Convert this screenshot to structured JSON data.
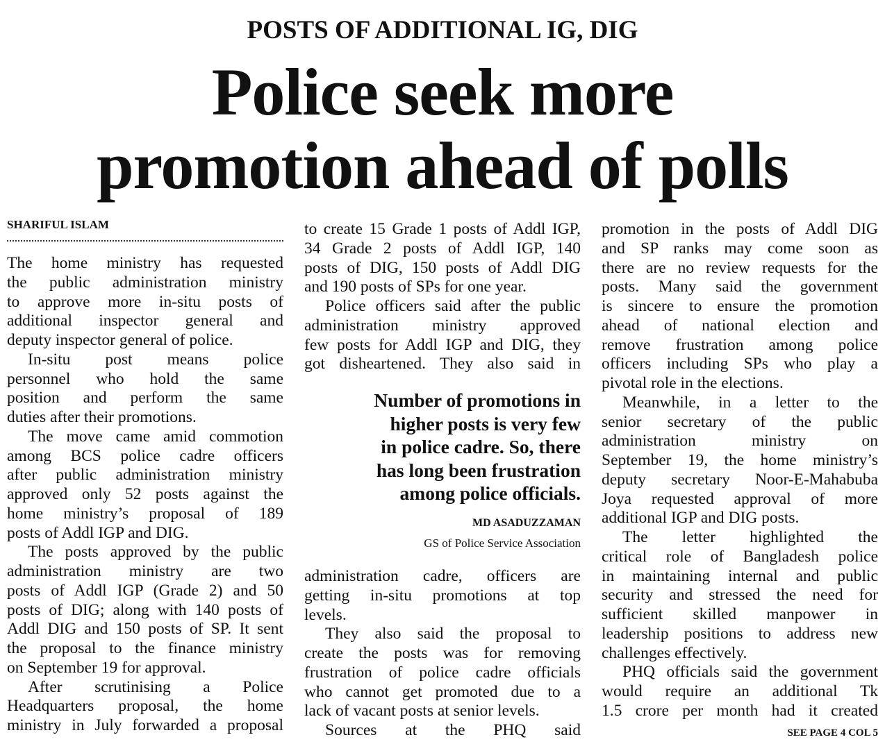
{
  "kicker": "POSTS OF ADDITIONAL IG, DIG",
  "headline": [
    "Police seek more",
    "promotion ahead of polls"
  ],
  "byline": "SHARIFUL ISLAM",
  "col1": [
    {
      "indent": false,
      "cont": false,
      "lines": [
        "The home ministry has requested",
        "the public administration ministry",
        "to approve more in-situ posts of",
        "additional inspector general and",
        "deputy inspector general of police."
      ]
    },
    {
      "indent": true,
      "cont": false,
      "lines": [
        "In-situ post means police",
        "personnel who hold the same",
        "position and perform the same",
        "duties after their promotions."
      ]
    },
    {
      "indent": true,
      "cont": false,
      "lines": [
        "The move came amid commotion",
        "among BCS police cadre officers",
        "after public administration ministry",
        "approved only 52 posts against the",
        "home ministry’s proposal of 189",
        "posts of Addl IGP and DIG."
      ]
    },
    {
      "indent": true,
      "cont": false,
      "lines": [
        "The posts approved by the public",
        "administration ministry are two",
        "posts of Addl IGP (Grade 2) and 50",
        "posts of DIG; along with 140 posts of",
        "Addl DIG and 150 posts of SP. It sent",
        "the proposal to the finance ministry",
        "on September 19 for approval."
      ]
    },
    {
      "indent": true,
      "cont": true,
      "lines": [
        "After scrutinising a Police",
        "Headquarters proposal, the home",
        "ministry in July forwarded a proposal"
      ]
    }
  ],
  "col2a": [
    {
      "indent": false,
      "cont": false,
      "lines": [
        "to create 15 Grade 1 posts of Addl IGP,",
        "34 Grade 2 posts of Addl IGP, 140",
        "posts of DIG, 150 posts of Addl DIG",
        "and 190 posts of SPs for one year."
      ]
    },
    {
      "indent": true,
      "cont": true,
      "lines": [
        "Police officers said after the public",
        "administration ministry approved",
        "few posts for Addl IGP and DIG, they",
        "got disheartened. They also said in"
      ]
    }
  ],
  "pullquote": {
    "lines": [
      "Number of promotions in",
      "higher posts is very few",
      "in police cadre. So, there",
      "has long been frustration",
      "among police officials."
    ],
    "name": "MD ASADUZZAMAN",
    "role": "GS of Police Service Association"
  },
  "col2b": [
    {
      "indent": false,
      "cont": false,
      "lines": [
        "administration cadre, officers are",
        "getting in-situ promotions at top",
        "levels."
      ]
    },
    {
      "indent": true,
      "cont": false,
      "lines": [
        "They also said the proposal to",
        "create the posts was for removing",
        "frustration of police cadre officials",
        "who cannot get promoted due to a",
        "lack of vacant posts at senior levels."
      ]
    },
    {
      "indent": true,
      "cont": true,
      "lines": [
        "Sources at the PHQ said"
      ]
    }
  ],
  "col3": [
    {
      "indent": false,
      "cont": false,
      "lines": [
        "promotion in the posts of Addl DIG",
        "and SP ranks may come soon as",
        "there are no review requests for the",
        "posts. Many said the government",
        "is sincere to ensure the promotion",
        "ahead of national election and",
        "remove frustration among police",
        "officers including SPs who play a",
        "pivotal role in the elections."
      ]
    },
    {
      "indent": true,
      "cont": false,
      "lines": [
        "Meanwhile, in a letter to the",
        "senior secretary of the public",
        "administration ministry on",
        "September 19, the home ministry’s",
        "deputy secretary Noor-E-Mahabuba",
        "Joya requested approval of more",
        "additional IGP and DIG posts."
      ]
    },
    {
      "indent": true,
      "cont": false,
      "lines": [
        "The letter highlighted the",
        "critical role of Bangladesh police",
        "in maintaining internal and public",
        "security and stressed the need for",
        "sufficient skilled manpower in",
        "leadership positions to address new",
        "challenges effectively."
      ]
    },
    {
      "indent": true,
      "cont": true,
      "lines": [
        "PHQ officials said the government",
        "would require an additional Tk",
        "1.5 crore per month had it created"
      ]
    }
  ],
  "jump": "SEE PAGE 4 COL 5"
}
